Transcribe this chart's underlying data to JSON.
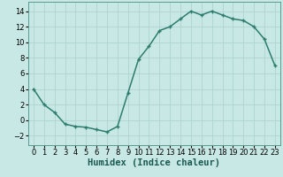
{
  "x": [
    0,
    1,
    2,
    3,
    4,
    5,
    6,
    7,
    8,
    9,
    10,
    11,
    12,
    13,
    14,
    15,
    16,
    17,
    18,
    19,
    20,
    21,
    22,
    23
  ],
  "y": [
    4,
    2,
    1,
    -0.5,
    -0.8,
    -0.9,
    -1.2,
    -1.5,
    -0.8,
    3.5,
    7.8,
    9.5,
    11.5,
    12,
    13,
    14,
    13.5,
    14,
    13.5,
    13,
    12.8,
    12,
    10.4,
    7
  ],
  "line_color": "#2d7d6e",
  "marker": "+",
  "bg_color": "#c8e8e5",
  "grid_color": "#aed4d0",
  "xlabel": "Humidex (Indice chaleur)",
  "xlim": [
    -0.5,
    23.5
  ],
  "ylim": [
    -3.2,
    15.2
  ],
  "yticks": [
    -2,
    0,
    2,
    4,
    6,
    8,
    10,
    12,
    14
  ],
  "xtick_labels": [
    "0",
    "1",
    "2",
    "3",
    "4",
    "5",
    "6",
    "7",
    "8",
    "9",
    "10",
    "11",
    "12",
    "13",
    "14",
    "15",
    "16",
    "17",
    "18",
    "19",
    "20",
    "21",
    "22",
    "23"
  ],
  "xlabel_fontsize": 7.5,
  "tick_fontsize": 6.0,
  "linewidth": 1.1,
  "markersize": 3.5,
  "markeredgewidth": 1.0
}
